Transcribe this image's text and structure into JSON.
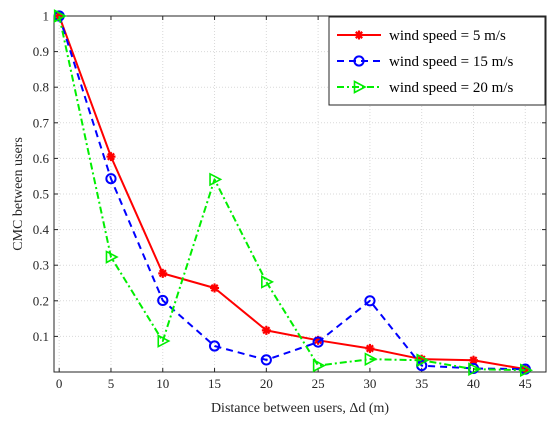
{
  "chart_data": {
    "type": "line",
    "title": "",
    "xlabel": "Distance between users, Δd (m)",
    "ylabel": "CMC between users",
    "xlim": [
      -0.5,
      47
    ],
    "ylim": [
      0,
      1
    ],
    "x_ticks": [
      "0",
      "5",
      "10",
      "15",
      "20",
      "25",
      "30",
      "35",
      "40",
      "45"
    ],
    "y_ticks": [
      "0.1",
      "0.2",
      "0.3",
      "0.4",
      "0.5",
      "0.6",
      "0.7",
      "0.8",
      "0.9",
      "1"
    ],
    "grid": true,
    "legend_position": "top-right",
    "series": [
      {
        "name": "wind speed = 5 m/s",
        "color": "#ff0000",
        "line_style": "solid",
        "marker": "asterisk",
        "x": [
          0,
          5,
          10,
          15,
          20,
          25,
          30,
          35,
          40,
          45
        ],
        "y": [
          1.0,
          0.605,
          0.277,
          0.236,
          0.117,
          0.089,
          0.066,
          0.036,
          0.033,
          0.008
        ]
      },
      {
        "name": "wind speed = 15 m/s",
        "color": "#0000ff",
        "line_style": "dashed",
        "marker": "circle",
        "x": [
          0,
          5,
          10,
          15,
          20,
          25,
          30,
          35,
          40,
          45
        ],
        "y": [
          1.0,
          0.543,
          0.201,
          0.073,
          0.034,
          0.084,
          0.2,
          0.018,
          0.01,
          0.008
        ]
      },
      {
        "name": "wind speed = 20 m/s",
        "color": "#00ee00",
        "line_style": "dashdot",
        "marker": "triangle-right",
        "x": [
          0,
          5,
          10,
          15,
          20,
          25,
          30,
          35,
          40,
          45
        ],
        "y": [
          1.0,
          0.323,
          0.087,
          0.541,
          0.253,
          0.018,
          0.036,
          0.033,
          0.008,
          0.005
        ]
      }
    ]
  }
}
